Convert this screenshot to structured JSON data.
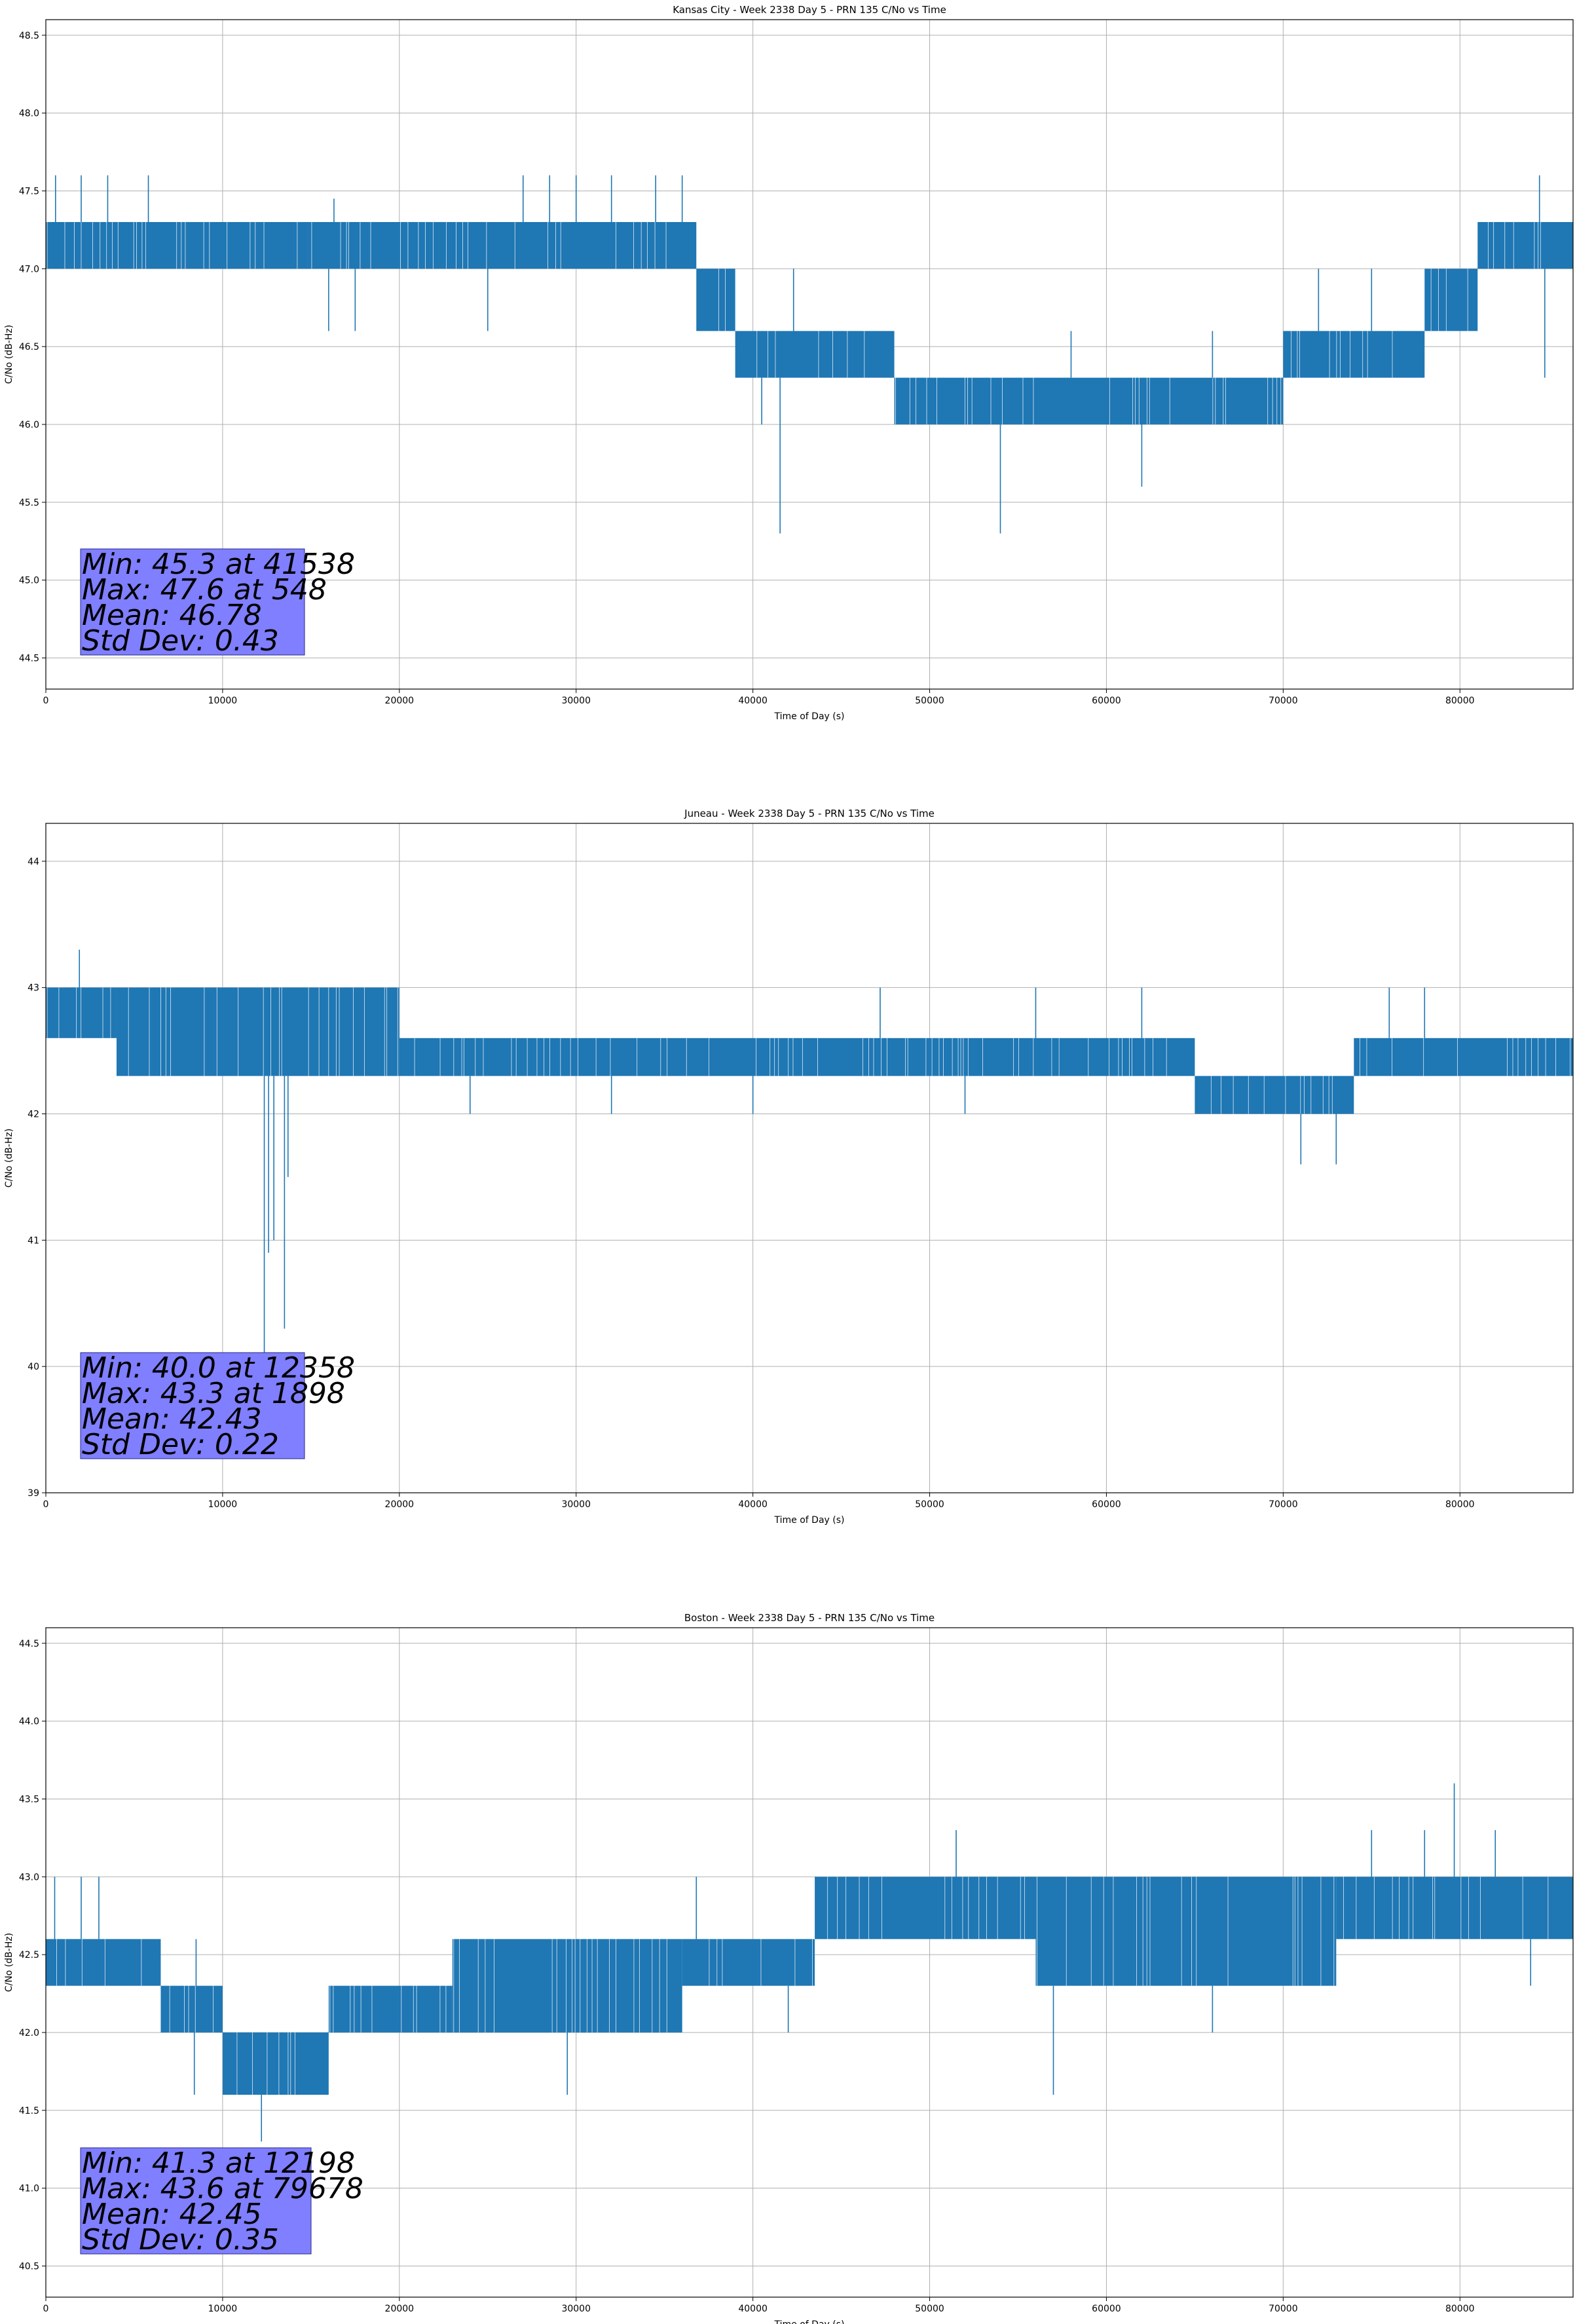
{
  "chart_data": [
    {
      "type": "line",
      "title": "Kansas City - Week 2338 Day 5 - PRN 135 C/No vs Time",
      "xlabel": "Time of Day (s)",
      "ylabel": "C/No (dB-Hz)",
      "xlim": [
        0,
        86400
      ],
      "ylim": [
        44.3,
        48.6
      ],
      "xticks": [
        0,
        10000,
        20000,
        30000,
        40000,
        50000,
        60000,
        70000,
        80000
      ],
      "yticks": [
        44.5,
        45.0,
        45.5,
        46.0,
        46.5,
        47.0,
        47.5,
        48.0,
        48.5
      ],
      "ytick_decimals": 1,
      "grid": true,
      "series_color": "#1f77b4",
      "stats": [
        "Min: 45.3 at 41538",
        "Max: 47.6 at 548",
        "Mean: 46.78",
        "Std Dev: 0.43"
      ],
      "series": [
        {
          "segments": [
            {
              "x0": 0,
              "x1": 14800,
              "lo": 47.0,
              "hi": 47.3
            },
            {
              "x0": 14800,
              "x1": 36800,
              "lo": 47.0,
              "hi": 47.3
            },
            {
              "x0": 36800,
              "x1": 39000,
              "lo": 46.6,
              "hi": 47.0
            },
            {
              "x0": 39000,
              "x1": 48000,
              "lo": 46.3,
              "hi": 46.6
            },
            {
              "x0": 48000,
              "x1": 70000,
              "lo": 46.0,
              "hi": 46.3
            },
            {
              "x0": 70000,
              "x1": 78000,
              "lo": 46.3,
              "hi": 46.6
            },
            {
              "x0": 78000,
              "x1": 81000,
              "lo": 46.6,
              "hi": 47.0
            },
            {
              "x0": 81000,
              "x1": 86400,
              "lo": 47.0,
              "hi": 47.3
            }
          ],
          "spikes": [
            {
              "x": 548,
              "y": 47.6
            },
            {
              "x": 2000,
              "y": 47.6
            },
            {
              "x": 3500,
              "y": 47.6
            },
            {
              "x": 5800,
              "y": 47.6
            },
            {
              "x": 16300,
              "y": 47.45
            },
            {
              "x": 16000,
              "y": 46.6
            },
            {
              "x": 17500,
              "y": 46.6
            },
            {
              "x": 25000,
              "y": 46.6
            },
            {
              "x": 27000,
              "y": 47.6
            },
            {
              "x": 28500,
              "y": 47.6
            },
            {
              "x": 30000,
              "y": 47.6
            },
            {
              "x": 32000,
              "y": 47.6
            },
            {
              "x": 34500,
              "y": 47.6
            },
            {
              "x": 36000,
              "y": 47.6
            },
            {
              "x": 41538,
              "y": 45.3
            },
            {
              "x": 40500,
              "y": 46.0
            },
            {
              "x": 42300,
              "y": 47.0
            },
            {
              "x": 54000,
              "y": 45.3
            },
            {
              "x": 58000,
              "y": 46.6
            },
            {
              "x": 62000,
              "y": 45.6
            },
            {
              "x": 66000,
              "y": 46.6
            },
            {
              "x": 72000,
              "y": 47.0
            },
            {
              "x": 75000,
              "y": 47.0
            },
            {
              "x": 84500,
              "y": 47.6
            },
            {
              "x": 84800,
              "y": 46.3
            }
          ]
        }
      ]
    },
    {
      "type": "line",
      "title": "Juneau - Week 2338 Day 5 - PRN 135 C/No vs Time",
      "xlabel": "Time of Day (s)",
      "ylabel": "C/No (dB-Hz)",
      "xlim": [
        0,
        86400
      ],
      "ylim": [
        39.0,
        44.3
      ],
      "xticks": [
        0,
        10000,
        20000,
        30000,
        40000,
        50000,
        60000,
        70000,
        80000
      ],
      "yticks": [
        39,
        40,
        41,
        42,
        43,
        44
      ],
      "ytick_decimals": 0,
      "grid": true,
      "series_color": "#1f77b4",
      "stats": [
        "Min: 40.0 at 12358",
        "Max: 43.3 at 1898",
        "Mean: 42.43",
        "Std Dev: 0.22"
      ],
      "series": [
        {
          "segments": [
            {
              "x0": 0,
              "x1": 4000,
              "lo": 42.6,
              "hi": 43.0
            },
            {
              "x0": 4000,
              "x1": 20000,
              "lo": 42.3,
              "hi": 43.0
            },
            {
              "x0": 20000,
              "x1": 65000,
              "lo": 42.3,
              "hi": 42.6
            },
            {
              "x0": 65000,
              "x1": 74000,
              "lo": 42.0,
              "hi": 42.3
            },
            {
              "x0": 74000,
              "x1": 86400,
              "lo": 42.3,
              "hi": 42.6
            }
          ],
          "spikes": [
            {
              "x": 1898,
              "y": 43.3
            },
            {
              "x": 12358,
              "y": 40.0
            },
            {
              "x": 12600,
              "y": 40.9
            },
            {
              "x": 12900,
              "y": 41.0
            },
            {
              "x": 13500,
              "y": 40.3
            },
            {
              "x": 13700,
              "y": 41.5
            },
            {
              "x": 47200,
              "y": 43.0
            },
            {
              "x": 56000,
              "y": 43.0
            },
            {
              "x": 62000,
              "y": 43.0
            },
            {
              "x": 71000,
              "y": 41.6
            },
            {
              "x": 73000,
              "y": 41.6
            },
            {
              "x": 76000,
              "y": 43.0
            },
            {
              "x": 78000,
              "y": 43.0
            },
            {
              "x": 24000,
              "y": 42.0
            },
            {
              "x": 32000,
              "y": 42.0
            },
            {
              "x": 40000,
              "y": 42.0
            },
            {
              "x": 52000,
              "y": 42.0
            }
          ]
        }
      ]
    },
    {
      "type": "line",
      "title": "Boston - Week 2338 Day 5 - PRN 135 C/No vs Time",
      "xlabel": "Time of Day (s)",
      "ylabel": "C/No (dB-Hz)",
      "xlim": [
        0,
        86400
      ],
      "ylim": [
        40.3,
        44.6
      ],
      "xticks": [
        0,
        10000,
        20000,
        30000,
        40000,
        50000,
        60000,
        70000,
        80000
      ],
      "yticks": [
        40.5,
        41.0,
        41.5,
        42.0,
        42.5,
        43.0,
        43.5,
        44.0,
        44.5
      ],
      "ytick_decimals": 1,
      "grid": true,
      "series_color": "#1f77b4",
      "stats": [
        "Min: 41.3 at 12198",
        "Max: 43.6 at 79678",
        "Mean: 42.45",
        "Std Dev: 0.35"
      ],
      "series": [
        {
          "segments": [
            {
              "x0": 0,
              "x1": 6500,
              "lo": 42.3,
              "hi": 42.6
            },
            {
              "x0": 6500,
              "x1": 10000,
              "lo": 42.0,
              "hi": 42.3
            },
            {
              "x0": 10000,
              "x1": 16000,
              "lo": 41.6,
              "hi": 42.0
            },
            {
              "x0": 16000,
              "x1": 23000,
              "lo": 42.0,
              "hi": 42.3
            },
            {
              "x0": 23000,
              "x1": 36000,
              "lo": 42.0,
              "hi": 42.6
            },
            {
              "x0": 36000,
              "x1": 43500,
              "lo": 42.3,
              "hi": 42.6
            },
            {
              "x0": 43500,
              "x1": 56000,
              "lo": 42.6,
              "hi": 43.0
            },
            {
              "x0": 56000,
              "x1": 73000,
              "lo": 42.3,
              "hi": 43.0
            },
            {
              "x0": 73000,
              "x1": 86400,
              "lo": 42.6,
              "hi": 43.0
            }
          ],
          "spikes": [
            {
              "x": 500,
              "y": 43.0
            },
            {
              "x": 2000,
              "y": 43.0
            },
            {
              "x": 3000,
              "y": 43.0
            },
            {
              "x": 8500,
              "y": 42.6
            },
            {
              "x": 8400,
              "y": 41.6
            },
            {
              "x": 12198,
              "y": 41.3
            },
            {
              "x": 29500,
              "y": 41.6
            },
            {
              "x": 36800,
              "y": 43.0
            },
            {
              "x": 42000,
              "y": 42.0
            },
            {
              "x": 51500,
              "y": 43.3
            },
            {
              "x": 57000,
              "y": 41.6
            },
            {
              "x": 66000,
              "y": 42.0
            },
            {
              "x": 79678,
              "y": 43.6
            },
            {
              "x": 78000,
              "y": 43.3
            },
            {
              "x": 82000,
              "y": 43.3
            },
            {
              "x": 84000,
              "y": 42.3
            },
            {
              "x": 75000,
              "y": 43.3
            }
          ]
        }
      ]
    }
  ]
}
